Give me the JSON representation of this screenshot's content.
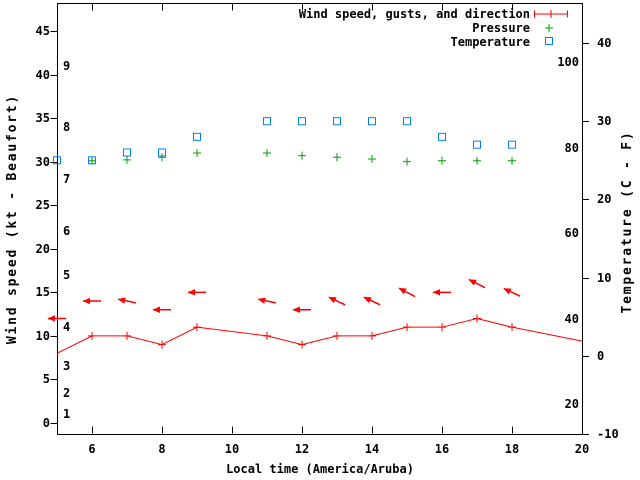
{
  "figure": {
    "background": "#ffffff",
    "axis_color": "#000000"
  },
  "legend": {
    "position": "top-right-inside",
    "items": [
      {
        "label": "Wind speed, gusts, and direction",
        "color": "#ff0000",
        "marker": "errorbar-line-plus"
      },
      {
        "label": "Pressure",
        "color": "#00a000",
        "marker": "plus"
      },
      {
        "label": "Temperature",
        "color": "#0080ff",
        "marker": "open-square"
      }
    ]
  },
  "chart_data": {
    "type": "line",
    "title": "",
    "xlabel": "Local time (America/Aruba)",
    "x_range": [
      5,
      20
    ],
    "x_ticks": [
      6,
      8,
      10,
      12,
      14,
      16,
      18,
      20
    ],
    "grid": false,
    "legend_position": "top-right-inside",
    "left_axis": {
      "label": "Wind speed (kt - Beaufort)",
      "ticks_kt": [
        0,
        5,
        10,
        15,
        20,
        25,
        30,
        35,
        40,
        45
      ],
      "range_kt": [
        0,
        45
      ],
      "beaufort_scale": [
        {
          "bft": 1,
          "kt": 1
        },
        {
          "bft": 2,
          "kt": 3.5
        },
        {
          "bft": 3,
          "kt": 6.5
        },
        {
          "bft": 4,
          "kt": 11
        },
        {
          "bft": 5,
          "kt": 17
        },
        {
          "bft": 6,
          "kt": 22
        },
        {
          "bft": 7,
          "kt": 28
        },
        {
          "bft": 8,
          "kt": 34
        },
        {
          "bft": 9,
          "kt": 41
        }
      ]
    },
    "right_axis": {
      "label": "Temperature (C - F)",
      "ticks_c": [
        -10,
        0,
        10,
        20,
        30,
        40
      ],
      "range_c": [
        -10,
        40
      ],
      "f_labels": [
        20,
        40,
        60,
        80,
        100
      ]
    },
    "series": {
      "wind_speed": {
        "name": "Wind speed",
        "units": "kt",
        "points": [
          {
            "h": 5,
            "kt": 8,
            "marker": false
          },
          {
            "h": 6,
            "kt": 10,
            "marker": true
          },
          {
            "h": 7,
            "kt": 10,
            "marker": true
          },
          {
            "h": 8,
            "kt": 9,
            "marker": true
          },
          {
            "h": 9,
            "kt": 11,
            "marker": true
          },
          {
            "h": 11,
            "kt": 10,
            "marker": true
          },
          {
            "h": 12,
            "kt": 9,
            "marker": true
          },
          {
            "h": 13,
            "kt": 10,
            "marker": true
          },
          {
            "h": 14,
            "kt": 10,
            "marker": true
          },
          {
            "h": 15,
            "kt": 11,
            "marker": true
          },
          {
            "h": 16,
            "kt": 11,
            "marker": true
          },
          {
            "h": 17,
            "kt": 12,
            "marker": true
          },
          {
            "h": 18,
            "kt": 11,
            "marker": true
          },
          {
            "h": 20,
            "kt": 9.4,
            "marker": false
          }
        ]
      },
      "wind_gust": {
        "name": "Gusts with direction arrows",
        "units": "kt",
        "points": [
          {
            "h": 5,
            "kt": 12,
            "dir_from_deg": 90
          },
          {
            "h": 6,
            "kt": 14,
            "dir_from_deg": 90
          },
          {
            "h": 7,
            "kt": 14,
            "dir_from_deg": 78
          },
          {
            "h": 8,
            "kt": 13,
            "dir_from_deg": 90
          },
          {
            "h": 9,
            "kt": 15,
            "dir_from_deg": 90
          },
          {
            "h": 11,
            "kt": 14,
            "dir_from_deg": 78
          },
          {
            "h": 12,
            "kt": 13,
            "dir_from_deg": 90
          },
          {
            "h": 13,
            "kt": 14,
            "dir_from_deg": 65
          },
          {
            "h": 14,
            "kt": 14,
            "dir_from_deg": 65
          },
          {
            "h": 15,
            "kt": 15,
            "dir_from_deg": 62
          },
          {
            "h": 16,
            "kt": 15,
            "dir_from_deg": 90
          },
          {
            "h": 17,
            "kt": 16,
            "dir_from_deg": 63
          },
          {
            "h": 18,
            "kt": 15,
            "dir_from_deg": 65
          }
        ]
      },
      "pressure": {
        "name": "Pressure",
        "note": "pressure scale is not drawn; values are positions on the left kt axis",
        "points": [
          {
            "h": 6,
            "v": 30.1
          },
          {
            "h": 7,
            "v": 30.2
          },
          {
            "h": 8,
            "v": 30.5
          },
          {
            "h": 9,
            "v": 31.0
          },
          {
            "h": 11,
            "v": 31.0
          },
          {
            "h": 12,
            "v": 30.7
          },
          {
            "h": 13,
            "v": 30.5
          },
          {
            "h": 14,
            "v": 30.3
          },
          {
            "h": 15,
            "v": 30.0
          },
          {
            "h": 16,
            "v": 30.1
          },
          {
            "h": 17,
            "v": 30.1
          },
          {
            "h": 18,
            "v": 30.1
          }
        ]
      },
      "temperature": {
        "name": "Temperature",
        "points": [
          {
            "h": 5,
            "c": 25,
            "f": 77
          },
          {
            "h": 6,
            "c": 25,
            "f": 77
          },
          {
            "h": 7,
            "c": 26,
            "f": 79
          },
          {
            "h": 8,
            "c": 26,
            "f": 79
          },
          {
            "h": 9,
            "c": 28,
            "f": 82
          },
          {
            "h": 11,
            "c": 30,
            "f": 86
          },
          {
            "h": 12,
            "c": 30,
            "f": 86
          },
          {
            "h": 13,
            "c": 30,
            "f": 86
          },
          {
            "h": 14,
            "c": 30,
            "f": 86
          },
          {
            "h": 15,
            "c": 30,
            "f": 86
          },
          {
            "h": 16,
            "c": 28,
            "f": 82
          },
          {
            "h": 17,
            "c": 27,
            "f": 81
          },
          {
            "h": 18,
            "c": 27,
            "f": 81
          }
        ]
      }
    }
  }
}
